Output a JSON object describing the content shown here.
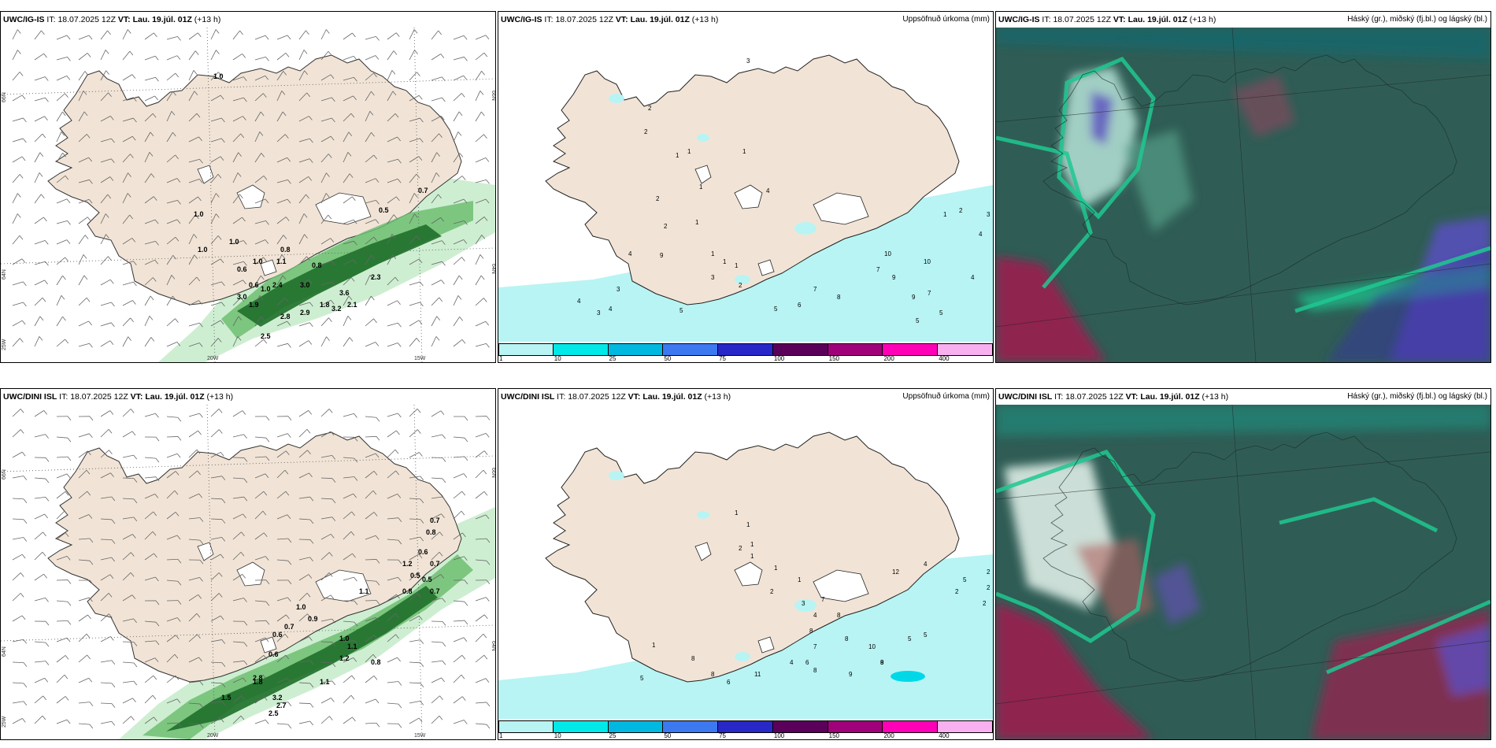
{
  "rows": [
    {
      "model": "UWC/IG-IS",
      "it_label": "IT:",
      "it_value": "18.07.2025 12Z",
      "vt_label": "VT:",
      "vt_value": "Lau. 19.júl. 01Z",
      "lead": "(+13 h)",
      "wind_labels": [
        "1.0",
        "1.0",
        "1.0",
        "1.0",
        "0.5",
        "0.7",
        "0.8",
        "1.1",
        "1.0",
        "0.6",
        "0.8",
        "2.4",
        "3.0",
        "3.6",
        "2.3",
        "2.8",
        "3.2",
        "2.9",
        "3.0",
        "1.9",
        "2.5",
        "1.2",
        "0.6",
        "1.0",
        "2.1",
        "1.8"
      ],
      "precip_labels": [
        "3",
        "2",
        "2",
        "1",
        "1",
        "1",
        "2",
        "1",
        "4",
        "1",
        "2",
        "9",
        "1",
        "1",
        "1",
        "2",
        "3",
        "4",
        "3",
        "4",
        "4",
        "3",
        "5",
        "5",
        "6",
        "7",
        "8",
        "7",
        "9",
        "10",
        "10",
        "9",
        "5",
        "5",
        "7",
        "4",
        "4",
        "3",
        "2",
        "1"
      ]
    },
    {
      "model": "UWC/DINI ISL",
      "it_label": "IT:",
      "it_value": "18.07.2025 12Z",
      "vt_label": "VT:",
      "vt_value": "Lau. 19.júl. 01Z",
      "lead": "(+13 h)",
      "wind_labels": [
        "0.7",
        "0.8",
        "0.6",
        "0.7",
        "1.2",
        "0.5",
        "0.8",
        "1.0",
        "0.9",
        "0.7",
        "0.6",
        "1.1",
        "0.5",
        "0.7",
        "2.8",
        "0.6",
        "0.8",
        "1.0",
        "1.1",
        "3.2",
        "2.7",
        "1.8",
        "1.5",
        "2.5",
        "1.1",
        "1.2"
      ],
      "precip_labels": [
        "1",
        "1",
        "2",
        "1",
        "1",
        "2",
        "1",
        "3",
        "4",
        "8",
        "7",
        "6",
        "8",
        "4",
        "7",
        "8",
        "8",
        "9",
        "10",
        "9",
        "8",
        "5",
        "5",
        "5",
        "4",
        "2",
        "2",
        "12",
        "2",
        "2",
        "1",
        "1",
        "5",
        "8",
        "8",
        "6",
        "11"
      ]
    }
  ],
  "precip_title": "Uppsöfnuð úrkoma (mm)",
  "cloud_title": "Háský (gr.), miðský (fj.bl.) og lágský (bl.)",
  "colorbar": {
    "ticks": [
      "1",
      "10",
      "25",
      "50",
      "75",
      "100",
      "150",
      "200",
      "400"
    ],
    "colors": [
      "#b8f4f4",
      "#00e8e8",
      "#00b8e0",
      "#3c78f0",
      "#2828c8",
      "#5a005a",
      "#a0007a",
      "#ff00b8",
      "#f8b0f0"
    ]
  },
  "axis_labels": {
    "lat66": "66N",
    "lat64": "64N",
    "lon25": "25W",
    "lon20": "20W",
    "lon15": "15W",
    "lat66r": "66N",
    "lat64r": "64N"
  },
  "colors": {
    "land": "#f1e4d6",
    "sea": "#ffffff",
    "rain_light": "#c9eccc",
    "rain_mid": "#6fbe72",
    "rain_dark": "#1f6f2a",
    "precip_light": "#b8f4f4",
    "cloud_base": "#2f5d55",
    "cloud_high": "#9a2050",
    "cloud_mid": "#5b4fc0",
    "cloud_low": "#1fc890"
  }
}
